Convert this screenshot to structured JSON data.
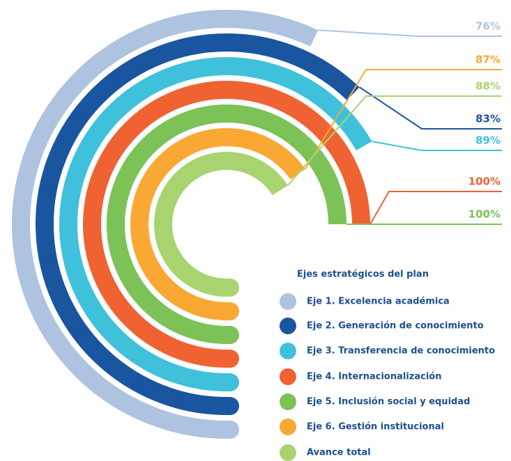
{
  "chart_data": {
    "type": "radial_bar",
    "legend_title": "Ejes estratégicos del plan",
    "categories": [
      "Eje 1. Excelencia académica",
      "Eje 2. Generación de conocimiento",
      "Eje 3. Transferencia de conocimiento",
      "Eje 4. Internacionalización",
      "Eje 5. Inclusión social y equidad",
      "Eje 6. Gestión institucional",
      "Avance total"
    ],
    "values": [
      76,
      83,
      89,
      100,
      100,
      87,
      88
    ],
    "value_labels": [
      "76%",
      "83%",
      "89%",
      "100%",
      "100%",
      "87%",
      "88%"
    ],
    "colors": [
      "#aec3df",
      "#1a55a0",
      "#3fc1dc",
      "#f06232",
      "#7cc257",
      "#f9a833",
      "#a8d46f"
    ],
    "max": 100
  }
}
